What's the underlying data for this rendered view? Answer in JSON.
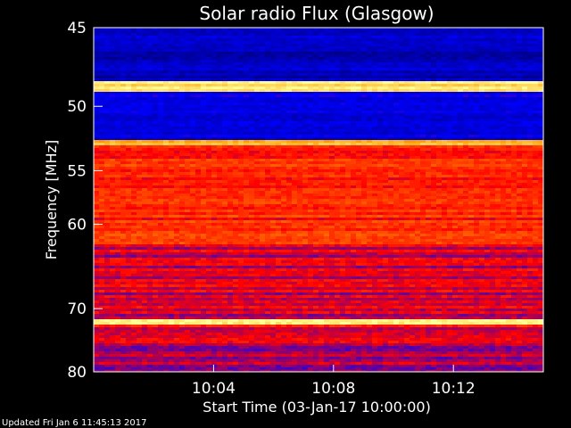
{
  "chart_data": {
    "type": "heatmap",
    "title": "Solar radio Flux (Glasgow)",
    "ylabel": "Frequency [MHz]",
    "xlabel": "Start Time (03-Jan-17 10:00:00)",
    "y_ticks": [
      45,
      50,
      55,
      60,
      70,
      80
    ],
    "y_unit": "MHz",
    "ylim": [
      45,
      80
    ],
    "y_scale": "reciprocal",
    "x_ticks": [
      "10:04",
      "10:08",
      "10:12"
    ],
    "x_tick_minutes": [
      4,
      8,
      12
    ],
    "xlim_minutes": [
      0,
      15
    ],
    "colormap": [
      "#000080",
      "#0000ff",
      "#ff0000",
      "#ff9900",
      "#ffff99"
    ],
    "bands": [
      {
        "f_start": 45.0,
        "f_end": 48.3,
        "level": 0.12
      },
      {
        "f_start": 48.3,
        "f_end": 49.0,
        "level": 0.95
      },
      {
        "f_start": 49.0,
        "f_end": 52.6,
        "level": 0.18
      },
      {
        "f_start": 52.6,
        "f_end": 53.0,
        "level": 0.8
      },
      {
        "f_start": 53.0,
        "f_end": 62.0,
        "level": 0.55
      },
      {
        "f_start": 62.0,
        "f_end": 71.5,
        "level": 0.45
      },
      {
        "f_start": 71.5,
        "f_end": 72.2,
        "level": 0.95
      },
      {
        "f_start": 72.2,
        "f_end": 75.0,
        "level": 0.5
      },
      {
        "f_start": 75.0,
        "f_end": 80.0,
        "level": 0.4
      }
    ]
  },
  "footer": "Updated Fri Jan  6 11:45:13 2017",
  "colors": {
    "background": "#000000",
    "text": "#ffffff",
    "axis": "#ffffff"
  }
}
